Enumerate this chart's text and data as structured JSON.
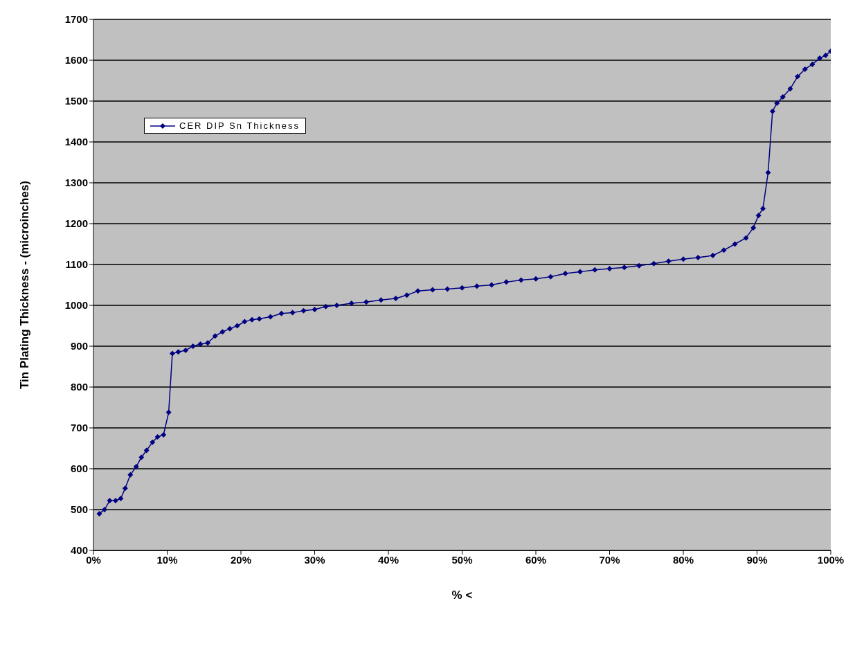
{
  "chart_data": {
    "type": "line",
    "xlabel": "% <",
    "ylabel": "Tin Plating Thickness - (microinches)",
    "xlim": [
      0,
      100
    ],
    "xticks": [
      {
        "value": 0,
        "label": "0%"
      },
      {
        "value": 10,
        "label": "10%"
      },
      {
        "value": 20,
        "label": "20%"
      },
      {
        "value": 30,
        "label": "30%"
      },
      {
        "value": 40,
        "label": "40%"
      },
      {
        "value": 50,
        "label": "50%"
      },
      {
        "value": 60,
        "label": "60%"
      },
      {
        "value": 70,
        "label": "70%"
      },
      {
        "value": 80,
        "label": "80%"
      },
      {
        "value": 90,
        "label": "90%"
      },
      {
        "value": 100,
        "label": "100%"
      }
    ],
    "ylim": [
      400,
      1700
    ],
    "yticks": [
      400,
      500,
      600,
      700,
      800,
      900,
      1000,
      1100,
      1200,
      1300,
      1400,
      1500,
      1600,
      1700
    ],
    "x": [
      0.8,
      1.5,
      2.2,
      3,
      3.7,
      4.3,
      5,
      5.8,
      6.5,
      7.2,
      8,
      8.7,
      9.5,
      10.2,
      10.7,
      11.5,
      12.5,
      13.5,
      14.5,
      15.5,
      16.5,
      17.5,
      18.5,
      19.5,
      20.5,
      21.5,
      22.5,
      24,
      25.5,
      27,
      28.5,
      30,
      31.5,
      33,
      35,
      37,
      39,
      41,
      42.5,
      44,
      46,
      48,
      50,
      52,
      54,
      56,
      58,
      60,
      62,
      64,
      66,
      68,
      70,
      72,
      74,
      76,
      78,
      80,
      82,
      84,
      85.5,
      87,
      88.5,
      89.5,
      90.2,
      90.8,
      91.5,
      92.1,
      92.7,
      93.5,
      94.5,
      95.5,
      96.5,
      97.5,
      98.5,
      99.3,
      100
    ],
    "series": [
      {
        "name": "CER DIP Sn Thickness",
        "color": "#000080",
        "values": [
          490,
          500,
          522,
          522,
          527,
          552,
          585,
          605,
          628,
          645,
          665,
          678,
          683,
          738,
          882,
          886,
          890,
          900,
          905,
          908,
          925,
          935,
          943,
          950,
          960,
          965,
          967,
          972,
          980,
          982,
          987,
          990,
          997,
          1000,
          1005,
          1008,
          1013,
          1017,
          1025,
          1035,
          1038,
          1040,
          1043,
          1047,
          1050,
          1057,
          1062,
          1065,
          1070,
          1078,
          1082,
          1087,
          1090,
          1093,
          1097,
          1102,
          1108,
          1113,
          1117,
          1122,
          1135,
          1150,
          1165,
          1190,
          1220,
          1237,
          1325,
          1475,
          1495,
          1510,
          1530,
          1560,
          1578,
          1590,
          1605,
          1612,
          1622
        ]
      }
    ],
    "grid": "y",
    "legend": "top left",
    "marker": "diamond",
    "line_style": "solid"
  }
}
